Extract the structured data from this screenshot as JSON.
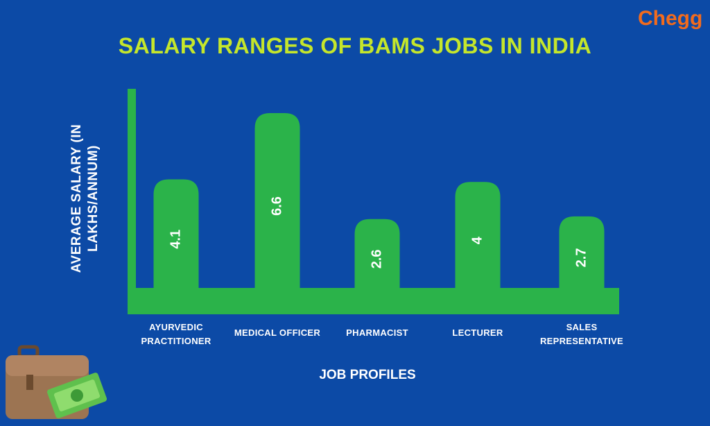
{
  "brand": "Chegg",
  "chart_data": {
    "type": "bar",
    "title": "SALARY RANGES OF BAMS JOBS IN INDIA",
    "y_label": "AVERAGE SALARY (IN LAKHS/ANNUM)",
    "x_label": "JOB PROFILES",
    "categories": [
      "AYURVEDIC PRACTITIONER",
      "MEDICAL OFFICER",
      "PHARMACIST",
      "LECTURER",
      "SALES REPRESENTATIVE"
    ],
    "values": [
      4.1,
      6.6,
      2.6,
      4,
      2.7
    ],
    "color": "#2bb34a"
  }
}
